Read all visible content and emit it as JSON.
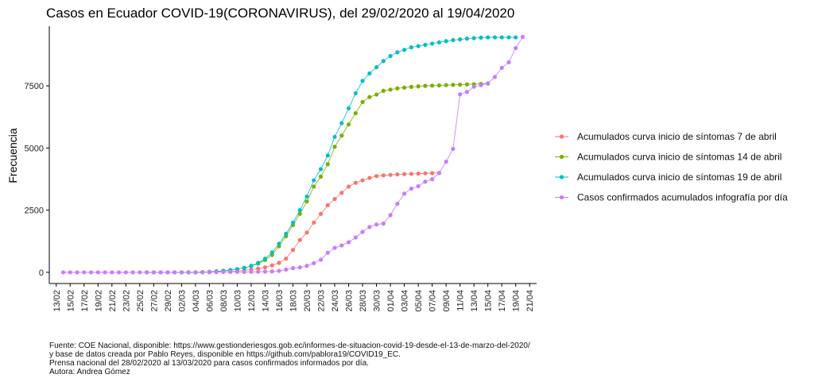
{
  "chart_data": {
    "type": "line",
    "title": "Casos en Ecuador COVID-19(CORONAVIRUS), del 29/02/2020 al 19/04/2020",
    "xlabel": "",
    "ylabel": "Frecuencia",
    "ylim": [
      -450,
      9900
    ],
    "yticks": [
      0,
      2500,
      5000,
      7500
    ],
    "ytick_labels": [
      "0",
      "2500",
      "5000",
      "7500"
    ],
    "x_start": "2020-02-12",
    "x_end": "2020-04-22",
    "xtick_labels": [
      "13/02",
      "15/02",
      "17/02",
      "19/02",
      "21/02",
      "23/02",
      "25/02",
      "27/02",
      "29/02",
      "02/03",
      "04/03",
      "06/03",
      "08/03",
      "10/03",
      "12/03",
      "14/03",
      "16/03",
      "18/03",
      "20/03",
      "22/03",
      "24/03",
      "26/03",
      "28/03",
      "30/03",
      "01/04",
      "03/04",
      "05/04",
      "07/04",
      "09/04",
      "11/04",
      "13/04",
      "15/04",
      "17/04",
      "19/04",
      "21/04"
    ],
    "xtick_days": [
      1,
      3,
      5,
      7,
      9,
      11,
      13,
      15,
      17,
      19,
      21,
      23,
      25,
      27,
      29,
      31,
      33,
      35,
      37,
      39,
      41,
      43,
      45,
      47,
      49,
      51,
      53,
      55,
      57,
      59,
      61,
      63,
      65,
      67,
      69
    ],
    "legend_position": "right",
    "series": [
      {
        "name": "Acumulados curva inicio de síntomas 7 de abril",
        "color": "#F8766D",
        "start_day": 14,
        "values": [
          0,
          0,
          0,
          0,
          0,
          0,
          0,
          0,
          0,
          5,
          10,
          20,
          30,
          50,
          80,
          110,
          150,
          200,
          280,
          380,
          550,
          900,
          1300,
          1600,
          2000,
          2350,
          2700,
          2950,
          3200,
          3450,
          3600,
          3700,
          3800,
          3870,
          3900,
          3920,
          3940,
          3950,
          3960,
          3970,
          3980,
          3990,
          4000
        ]
      },
      {
        "name": "Acumulados curva inicio de síntomas 14 de abril",
        "color": "#7CAE00",
        "start_day": 14,
        "values": [
          0,
          0,
          0,
          0,
          0,
          0,
          0,
          0,
          10,
          20,
          40,
          60,
          90,
          130,
          180,
          250,
          350,
          500,
          700,
          1050,
          1450,
          1900,
          2350,
          2850,
          3450,
          3850,
          4350,
          5050,
          5500,
          5950,
          6400,
          6850,
          7050,
          7150,
          7300,
          7350,
          7400,
          7430,
          7460,
          7480,
          7500,
          7510,
          7520,
          7530,
          7540,
          7550,
          7560,
          7570,
          7580,
          7590
        ]
      },
      {
        "name": "Acumulados curva inicio de síntomas 19 de abril",
        "color": "#00BFC4",
        "start_day": 14,
        "values": [
          0,
          0,
          0,
          0,
          0,
          0,
          0,
          0,
          10,
          20,
          40,
          60,
          90,
          130,
          180,
          260,
          380,
          550,
          800,
          1150,
          1550,
          2000,
          2500,
          3050,
          3700,
          4150,
          4700,
          5450,
          6000,
          6600,
          7200,
          7700,
          8000,
          8250,
          8500,
          8700,
          8850,
          8950,
          9050,
          9100,
          9150,
          9200,
          9250,
          9300,
          9340,
          9370,
          9400,
          9420,
          9440,
          9450,
          9450,
          9450,
          9450,
          9450
        ]
      },
      {
        "name": "Casos confirmados acumulados infografía por día",
        "color": "#C77CFF",
        "start_day": 2,
        "values": [
          0,
          0,
          0,
          0,
          0,
          0,
          0,
          0,
          0,
          0,
          0,
          0,
          0,
          0,
          0,
          0,
          1,
          1,
          6,
          7,
          10,
          13,
          14,
          15,
          15,
          17,
          17,
          19,
          23,
          28,
          37,
          58,
          111,
          168,
          199,
          260,
          367,
          506,
          789,
          981,
          1082,
          1211,
          1403,
          1627,
          1823,
          1924,
          1962,
          2302,
          2758,
          3163,
          3368,
          3465,
          3646,
          3747,
          3995,
          4450,
          4965,
          7161,
          7257,
          7466,
          7529,
          7603,
          7858,
          8225,
          8450,
          9022,
          9468
        ]
      }
    ]
  },
  "caption_lines": [
    "Fuente: COE Nacional, disponible: https://www.gestionderiesgos.gob.ec/informes-de-situacion-covid-19-desde-el-13-de-marzo-del-2020/",
    "y base de datos creada por Pablo Reyes, disponible en https://github.com/pablora19/COVID19_EC.",
    "Prensa nacional del 28/02/2020 al 13/03/2020 para casos confirmados informados por día.",
    "Autora: Andrea Gómez"
  ]
}
